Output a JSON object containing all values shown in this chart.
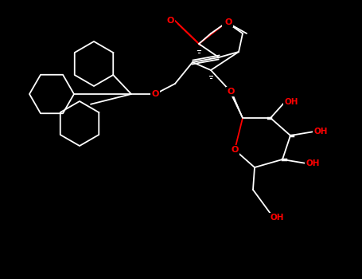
{
  "background_color": "#000000",
  "bond_color": "#ffffff",
  "oxygen_color": "#ff0000",
  "figsize": [
    4.55,
    3.5
  ],
  "dpi": 100,
  "xlim": [
    0,
    455
  ],
  "ylim": [
    0,
    350
  ]
}
